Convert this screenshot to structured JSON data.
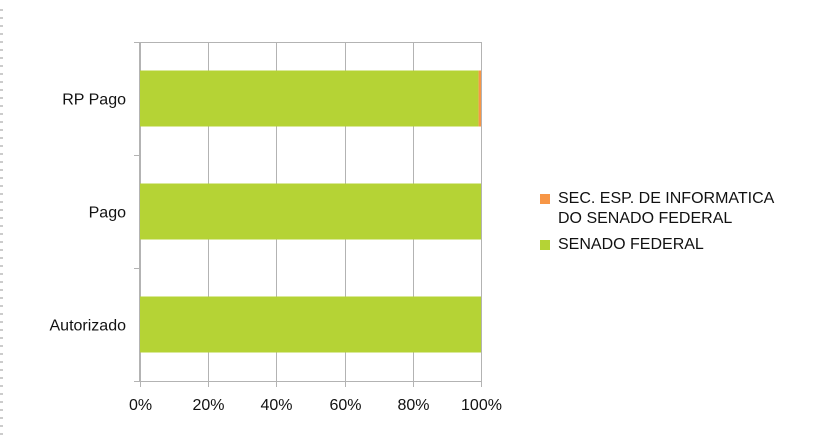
{
  "chart_data": {
    "type": "bar",
    "orientation": "horizontal",
    "stacked": "percent",
    "categories": [
      "RP Pago",
      "Pago",
      "Autorizado"
    ],
    "series": [
      {
        "name": "SENADO FEDERAL",
        "color": "#b5d335",
        "values": [
          99.3,
          100,
          100
        ]
      },
      {
        "name": "SEC. ESP. DE INFORMATICA DO SENADO FEDERAL",
        "color": "#f79646",
        "values": [
          0.7,
          0,
          0
        ]
      }
    ],
    "xlim": [
      0,
      100
    ],
    "xticks": [
      "0%",
      "20%",
      "40%",
      "60%",
      "80%",
      "100%"
    ],
    "grid": true,
    "legend_position": "right"
  },
  "legend": {
    "items": [
      {
        "label_lines": [
          "SEC. ESP. DE INFORMATICA",
          "DO SENADO FEDERAL"
        ],
        "color": "#f79646"
      },
      {
        "label_lines": [
          "SENADO FEDERAL"
        ],
        "color": "#b5d335"
      }
    ]
  }
}
